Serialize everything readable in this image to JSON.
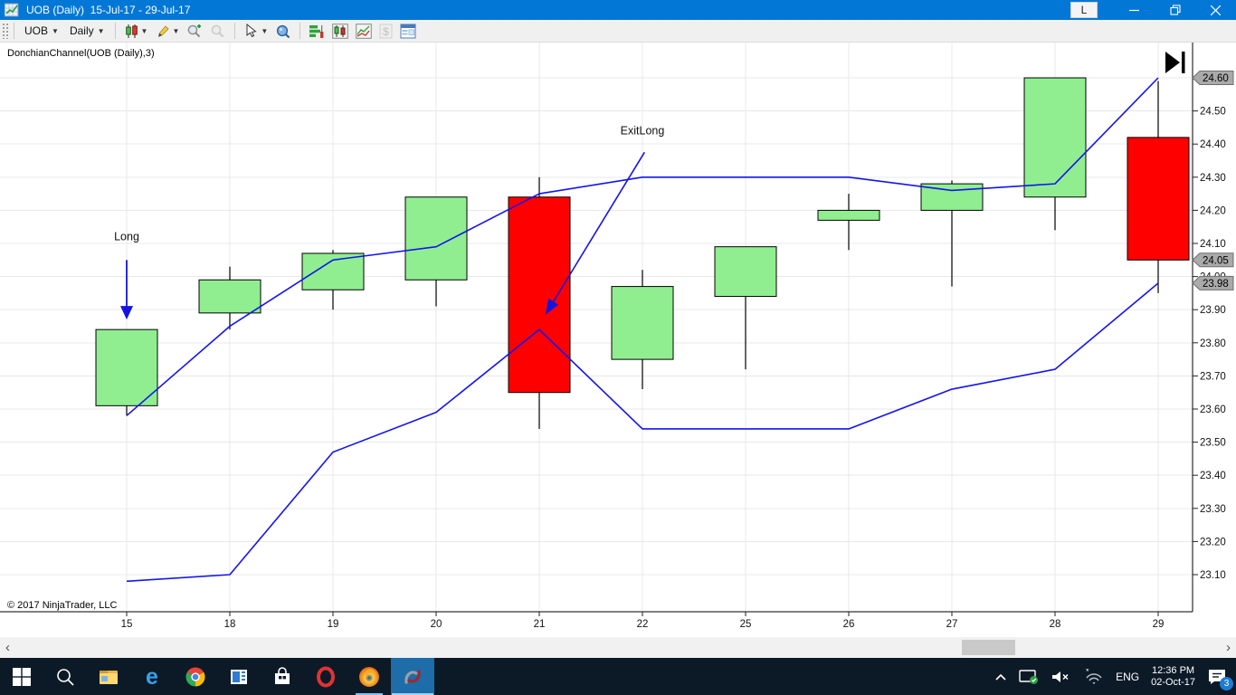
{
  "window": {
    "title": "UOB (Daily)  15-Jul-17 - 29-Jul-17",
    "link_button": "L"
  },
  "toolbar": {
    "instrument": "UOB",
    "interval": "Daily"
  },
  "chart": {
    "indicator_label": "DonchianChannel(UOB (Daily),3)",
    "copyright": "© 2017 NinjaTrader, LLC"
  },
  "chart_data": {
    "type": "candlestick",
    "title": "UOB (Daily) 15-Jul-17 - 29-Jul-17",
    "x_labels": [
      "15",
      "18",
      "19",
      "20",
      "21",
      "22",
      "25",
      "26",
      "27",
      "28",
      "29"
    ],
    "y_ticks": [
      "24.60",
      "24.50",
      "24.40",
      "24.30",
      "24.20",
      "24.10",
      "24.00",
      "23.90",
      "23.80",
      "23.70",
      "23.60",
      "23.50",
      "23.40",
      "23.30",
      "23.20",
      "23.10"
    ],
    "y_range": [
      22.99,
      24.71
    ],
    "grid": true,
    "candles": [
      {
        "date": "15",
        "open": 23.61,
        "high": 23.84,
        "low": 23.58,
        "close": 23.84
      },
      {
        "date": "18",
        "open": 23.89,
        "high": 24.03,
        "low": 23.84,
        "close": 23.99
      },
      {
        "date": "19",
        "open": 23.96,
        "high": 24.08,
        "low": 23.9,
        "close": 24.07
      },
      {
        "date": "20",
        "open": 23.99,
        "high": 24.24,
        "low": 23.91,
        "close": 24.24
      },
      {
        "date": "21",
        "open": 24.24,
        "high": 24.3,
        "low": 23.54,
        "close": 23.65
      },
      {
        "date": "22",
        "open": 23.75,
        "high": 24.02,
        "low": 23.66,
        "close": 23.97
      },
      {
        "date": "25",
        "open": 23.94,
        "high": 24.09,
        "low": 23.72,
        "close": 24.09
      },
      {
        "date": "26",
        "open": 24.17,
        "high": 24.25,
        "low": 24.08,
        "close": 24.2
      },
      {
        "date": "27",
        "open": 24.2,
        "high": 24.29,
        "low": 23.97,
        "close": 24.28
      },
      {
        "date": "28",
        "open": 24.24,
        "high": 24.6,
        "low": 24.14,
        "close": 24.6
      },
      {
        "date": "29",
        "open": 24.42,
        "high": 24.59,
        "low": 23.95,
        "close": 24.05
      }
    ],
    "series": [
      {
        "name": "Donchian Upper",
        "color": "#1414F0",
        "values": [
          23.58,
          23.85,
          24.05,
          24.09,
          24.25,
          24.3,
          24.3,
          24.3,
          24.26,
          24.28,
          24.6
        ]
      },
      {
        "name": "Donchian Lower",
        "color": "#1414F0",
        "values": [
          23.08,
          23.1,
          23.47,
          23.59,
          23.84,
          23.54,
          23.54,
          23.54,
          23.66,
          23.72,
          23.98
        ]
      }
    ],
    "price_markers": [
      {
        "value": "24.60"
      },
      {
        "value": "24.05"
      },
      {
        "value": "23.98"
      }
    ],
    "annotations": [
      {
        "type": "label",
        "text": "Long",
        "x_index": 0,
        "price": 24.12
      },
      {
        "type": "arrow_down",
        "x_index": 0,
        "from_price": 24.05,
        "to_price": 23.87
      },
      {
        "type": "label",
        "text": "ExitLong",
        "x_index": 5,
        "price": 24.44
      },
      {
        "type": "arrow_pointer",
        "from_x_index": 5.02,
        "from_price": 24.375,
        "to_x_index": 4.06,
        "to_price": 23.885
      }
    ],
    "colors": {
      "up": "#90EE90",
      "down": "#FF0000",
      "outline": "#000000",
      "annotation": "#1414E0"
    }
  },
  "taskbar": {
    "language": "ENG",
    "time": "12:36 PM",
    "date": "02-Oct-17",
    "notification_count": "3"
  }
}
